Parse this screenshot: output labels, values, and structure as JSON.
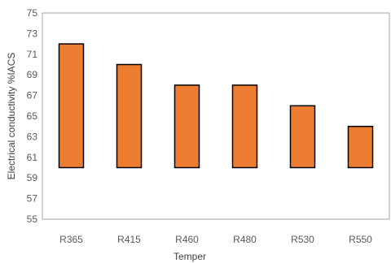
{
  "chart_data": {
    "type": "bar",
    "categories": [
      "R365",
      "R415",
      "R460",
      "R480",
      "R530",
      "R550"
    ],
    "values": [
      72,
      70,
      68,
      68,
      66,
      64
    ],
    "bar_base": 60,
    "title": "",
    "xlabel": "Temper",
    "ylabel": "Electrical conductivity  %IACS",
    "ylim": [
      55,
      75
    ],
    "yticks": [
      55,
      57,
      59,
      61,
      63,
      65,
      67,
      69,
      71,
      73,
      75
    ],
    "grid": false,
    "legend": "none",
    "bar_color": "#ED7D31",
    "bar_edge_color": "#000000"
  }
}
